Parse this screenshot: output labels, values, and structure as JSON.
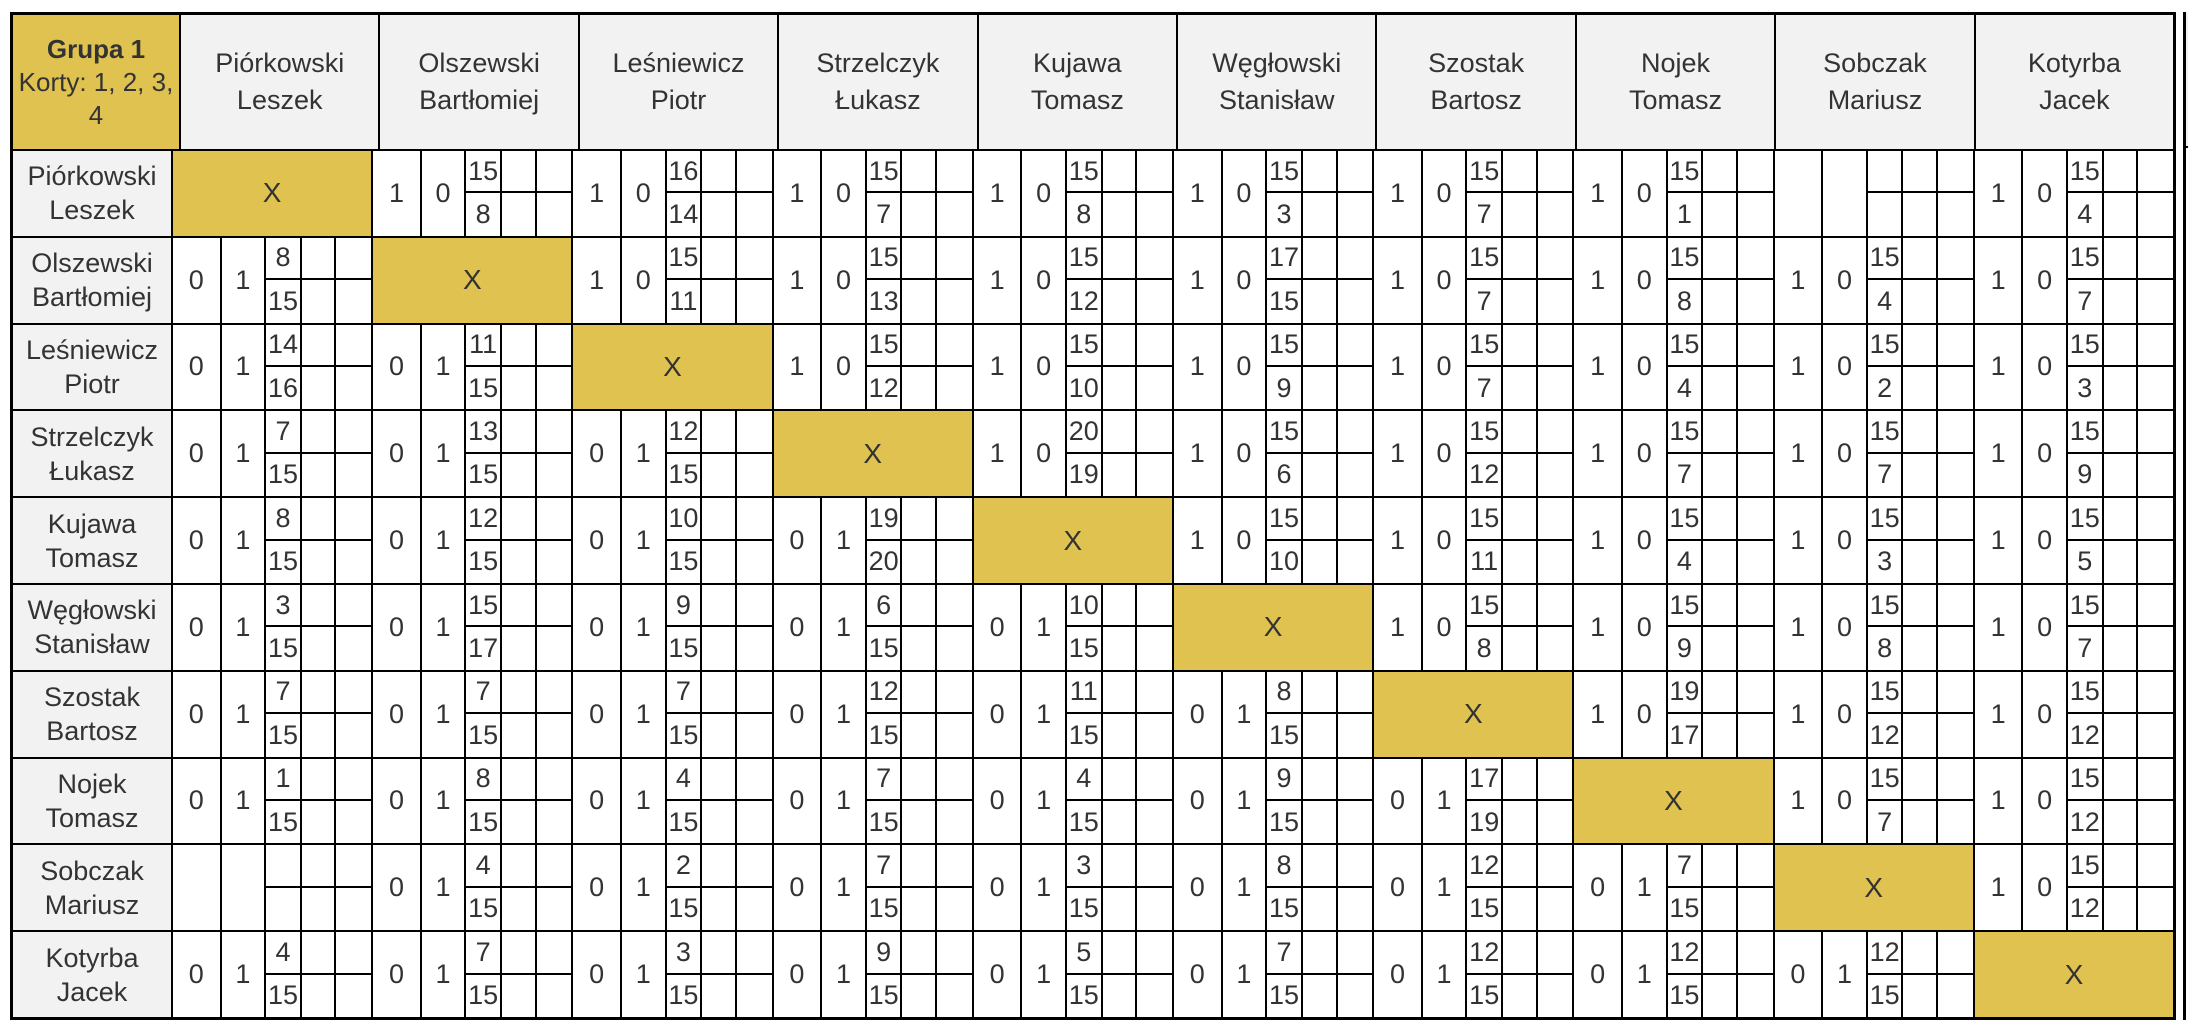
{
  "corner": {
    "title": "Grupa 1",
    "courts": "Korty: 1, 2, 3, 4"
  },
  "x_label": "X",
  "colors": {
    "gold": "#dfc24f",
    "header_bg": "#f2f2f2",
    "border": "#000000",
    "text": "#333333"
  },
  "players": [
    {
      "line1": "Piórkowski",
      "line2": "Leszek"
    },
    {
      "line1": "Olszewski",
      "line2": "Bartłomiej"
    },
    {
      "line1": "Leśniewicz",
      "line2": "Piotr"
    },
    {
      "line1": "Strzelczyk",
      "line2": "Łukasz"
    },
    {
      "line1": "Kujawa",
      "line2": "Tomasz"
    },
    {
      "line1": "Węgłowski",
      "line2": "Stanisław"
    },
    {
      "line1": "Szostak",
      "line2": "Bartosz"
    },
    {
      "line1": "Nojek",
      "line2": "Tomasz"
    },
    {
      "line1": "Sobczak",
      "line2": "Mariusz"
    },
    {
      "line1": "Kotyrba",
      "line2": "Jacek"
    }
  ],
  "rows": [
    {
      "cells": [
        {
          "t": "x"
        },
        {
          "t": "s",
          "d1": "1",
          "d2": "0",
          "top": "15",
          "bot": "8"
        },
        {
          "t": "s",
          "d1": "1",
          "d2": "0",
          "top": "16",
          "bot": "14"
        },
        {
          "t": "s",
          "d1": "1",
          "d2": "0",
          "top": "15",
          "bot": "7"
        },
        {
          "t": "s",
          "d1": "1",
          "d2": "0",
          "top": "15",
          "bot": "8"
        },
        {
          "t": "s",
          "d1": "1",
          "d2": "0",
          "top": "15",
          "bot": "3"
        },
        {
          "t": "s",
          "d1": "1",
          "d2": "0",
          "top": "15",
          "bot": "7"
        },
        {
          "t": "s",
          "d1": "1",
          "d2": "0",
          "top": "15",
          "bot": "1"
        },
        {
          "t": "e"
        },
        {
          "t": "s",
          "d1": "1",
          "d2": "0",
          "top": "15",
          "bot": "4"
        }
      ]
    },
    {
      "cells": [
        {
          "t": "s",
          "d1": "0",
          "d2": "1",
          "top": "8",
          "bot": "15"
        },
        {
          "t": "x"
        },
        {
          "t": "s",
          "d1": "1",
          "d2": "0",
          "top": "15",
          "bot": "11"
        },
        {
          "t": "s",
          "d1": "1",
          "d2": "0",
          "top": "15",
          "bot": "13"
        },
        {
          "t": "s",
          "d1": "1",
          "d2": "0",
          "top": "15",
          "bot": "12"
        },
        {
          "t": "s",
          "d1": "1",
          "d2": "0",
          "top": "17",
          "bot": "15"
        },
        {
          "t": "s",
          "d1": "1",
          "d2": "0",
          "top": "15",
          "bot": "7"
        },
        {
          "t": "s",
          "d1": "1",
          "d2": "0",
          "top": "15",
          "bot": "8"
        },
        {
          "t": "s",
          "d1": "1",
          "d2": "0",
          "top": "15",
          "bot": "4"
        },
        {
          "t": "s",
          "d1": "1",
          "d2": "0",
          "top": "15",
          "bot": "7"
        }
      ]
    },
    {
      "cells": [
        {
          "t": "s",
          "d1": "0",
          "d2": "1",
          "top": "14",
          "bot": "16"
        },
        {
          "t": "s",
          "d1": "0",
          "d2": "1",
          "top": "11",
          "bot": "15"
        },
        {
          "t": "x"
        },
        {
          "t": "s",
          "d1": "1",
          "d2": "0",
          "top": "15",
          "bot": "12"
        },
        {
          "t": "s",
          "d1": "1",
          "d2": "0",
          "top": "15",
          "bot": "10"
        },
        {
          "t": "s",
          "d1": "1",
          "d2": "0",
          "top": "15",
          "bot": "9"
        },
        {
          "t": "s",
          "d1": "1",
          "d2": "0",
          "top": "15",
          "bot": "7"
        },
        {
          "t": "s",
          "d1": "1",
          "d2": "0",
          "top": "15",
          "bot": "4"
        },
        {
          "t": "s",
          "d1": "1",
          "d2": "0",
          "top": "15",
          "bot": "2"
        },
        {
          "t": "s",
          "d1": "1",
          "d2": "0",
          "top": "15",
          "bot": "3"
        }
      ]
    },
    {
      "cells": [
        {
          "t": "s",
          "d1": "0",
          "d2": "1",
          "top": "7",
          "bot": "15"
        },
        {
          "t": "s",
          "d1": "0",
          "d2": "1",
          "top": "13",
          "bot": "15"
        },
        {
          "t": "s",
          "d1": "0",
          "d2": "1",
          "top": "12",
          "bot": "15"
        },
        {
          "t": "x"
        },
        {
          "t": "s",
          "d1": "1",
          "d2": "0",
          "top": "20",
          "bot": "19"
        },
        {
          "t": "s",
          "d1": "1",
          "d2": "0",
          "top": "15",
          "bot": "6"
        },
        {
          "t": "s",
          "d1": "1",
          "d2": "0",
          "top": "15",
          "bot": "12"
        },
        {
          "t": "s",
          "d1": "1",
          "d2": "0",
          "top": "15",
          "bot": "7"
        },
        {
          "t": "s",
          "d1": "1",
          "d2": "0",
          "top": "15",
          "bot": "7"
        },
        {
          "t": "s",
          "d1": "1",
          "d2": "0",
          "top": "15",
          "bot": "9"
        }
      ]
    },
    {
      "cells": [
        {
          "t": "s",
          "d1": "0",
          "d2": "1",
          "top": "8",
          "bot": "15"
        },
        {
          "t": "s",
          "d1": "0",
          "d2": "1",
          "top": "12",
          "bot": "15"
        },
        {
          "t": "s",
          "d1": "0",
          "d2": "1",
          "top": "10",
          "bot": "15"
        },
        {
          "t": "s",
          "d1": "0",
          "d2": "1",
          "top": "19",
          "bot": "20"
        },
        {
          "t": "x"
        },
        {
          "t": "s",
          "d1": "1",
          "d2": "0",
          "top": "15",
          "bot": "10"
        },
        {
          "t": "s",
          "d1": "1",
          "d2": "0",
          "top": "15",
          "bot": "11"
        },
        {
          "t": "s",
          "d1": "1",
          "d2": "0",
          "top": "15",
          "bot": "4"
        },
        {
          "t": "s",
          "d1": "1",
          "d2": "0",
          "top": "15",
          "bot": "3"
        },
        {
          "t": "s",
          "d1": "1",
          "d2": "0",
          "top": "15",
          "bot": "5"
        }
      ]
    },
    {
      "cells": [
        {
          "t": "s",
          "d1": "0",
          "d2": "1",
          "top": "3",
          "bot": "15"
        },
        {
          "t": "s",
          "d1": "0",
          "d2": "1",
          "top": "15",
          "bot": "17"
        },
        {
          "t": "s",
          "d1": "0",
          "d2": "1",
          "top": "9",
          "bot": "15"
        },
        {
          "t": "s",
          "d1": "0",
          "d2": "1",
          "top": "6",
          "bot": "15"
        },
        {
          "t": "s",
          "d1": "0",
          "d2": "1",
          "top": "10",
          "bot": "15"
        },
        {
          "t": "x"
        },
        {
          "t": "s",
          "d1": "1",
          "d2": "0",
          "top": "15",
          "bot": "8"
        },
        {
          "t": "s",
          "d1": "1",
          "d2": "0",
          "top": "15",
          "bot": "9"
        },
        {
          "t": "s",
          "d1": "1",
          "d2": "0",
          "top": "15",
          "bot": "8"
        },
        {
          "t": "s",
          "d1": "1",
          "d2": "0",
          "top": "15",
          "bot": "7"
        }
      ]
    },
    {
      "cells": [
        {
          "t": "s",
          "d1": "0",
          "d2": "1",
          "top": "7",
          "bot": "15"
        },
        {
          "t": "s",
          "d1": "0",
          "d2": "1",
          "top": "7",
          "bot": "15"
        },
        {
          "t": "s",
          "d1": "0",
          "d2": "1",
          "top": "7",
          "bot": "15"
        },
        {
          "t": "s",
          "d1": "0",
          "d2": "1",
          "top": "12",
          "bot": "15"
        },
        {
          "t": "s",
          "d1": "0",
          "d2": "1",
          "top": "11",
          "bot": "15"
        },
        {
          "t": "s",
          "d1": "0",
          "d2": "1",
          "top": "8",
          "bot": "15"
        },
        {
          "t": "x"
        },
        {
          "t": "s",
          "d1": "1",
          "d2": "0",
          "top": "19",
          "bot": "17"
        },
        {
          "t": "s",
          "d1": "1",
          "d2": "0",
          "top": "15",
          "bot": "12"
        },
        {
          "t": "s",
          "d1": "1",
          "d2": "0",
          "top": "15",
          "bot": "12"
        }
      ]
    },
    {
      "cells": [
        {
          "t": "s",
          "d1": "0",
          "d2": "1",
          "top": "1",
          "bot": "15"
        },
        {
          "t": "s",
          "d1": "0",
          "d2": "1",
          "top": "8",
          "bot": "15"
        },
        {
          "t": "s",
          "d1": "0",
          "d2": "1",
          "top": "4",
          "bot": "15"
        },
        {
          "t": "s",
          "d1": "0",
          "d2": "1",
          "top": "7",
          "bot": "15"
        },
        {
          "t": "s",
          "d1": "0",
          "d2": "1",
          "top": "4",
          "bot": "15"
        },
        {
          "t": "s",
          "d1": "0",
          "d2": "1",
          "top": "9",
          "bot": "15"
        },
        {
          "t": "s",
          "d1": "0",
          "d2": "1",
          "top": "17",
          "bot": "19"
        },
        {
          "t": "x"
        },
        {
          "t": "s",
          "d1": "1",
          "d2": "0",
          "top": "15",
          "bot": "7"
        },
        {
          "t": "s",
          "d1": "1",
          "d2": "0",
          "top": "15",
          "bot": "12"
        }
      ]
    },
    {
      "cells": [
        {
          "t": "e"
        },
        {
          "t": "s",
          "d1": "0",
          "d2": "1",
          "top": "4",
          "bot": "15"
        },
        {
          "t": "s",
          "d1": "0",
          "d2": "1",
          "top": "2",
          "bot": "15"
        },
        {
          "t": "s",
          "d1": "0",
          "d2": "1",
          "top": "7",
          "bot": "15"
        },
        {
          "t": "s",
          "d1": "0",
          "d2": "1",
          "top": "3",
          "bot": "15"
        },
        {
          "t": "s",
          "d1": "0",
          "d2": "1",
          "top": "8",
          "bot": "15"
        },
        {
          "t": "s",
          "d1": "0",
          "d2": "1",
          "top": "12",
          "bot": "15"
        },
        {
          "t": "s",
          "d1": "0",
          "d2": "1",
          "top": "7",
          "bot": "15"
        },
        {
          "t": "x"
        },
        {
          "t": "s",
          "d1": "1",
          "d2": "0",
          "top": "15",
          "bot": "12"
        }
      ]
    },
    {
      "cells": [
        {
          "t": "s",
          "d1": "0",
          "d2": "1",
          "top": "4",
          "bot": "15"
        },
        {
          "t": "s",
          "d1": "0",
          "d2": "1",
          "top": "7",
          "bot": "15"
        },
        {
          "t": "s",
          "d1": "0",
          "d2": "1",
          "top": "3",
          "bot": "15"
        },
        {
          "t": "s",
          "d1": "0",
          "d2": "1",
          "top": "9",
          "bot": "15"
        },
        {
          "t": "s",
          "d1": "0",
          "d2": "1",
          "top": "5",
          "bot": "15"
        },
        {
          "t": "s",
          "d1": "0",
          "d2": "1",
          "top": "7",
          "bot": "15"
        },
        {
          "t": "s",
          "d1": "0",
          "d2": "1",
          "top": "12",
          "bot": "15"
        },
        {
          "t": "s",
          "d1": "0",
          "d2": "1",
          "top": "12",
          "bot": "15"
        },
        {
          "t": "s",
          "d1": "0",
          "d2": "1",
          "top": "12",
          "bot": "15"
        },
        {
          "t": "x"
        }
      ]
    }
  ]
}
